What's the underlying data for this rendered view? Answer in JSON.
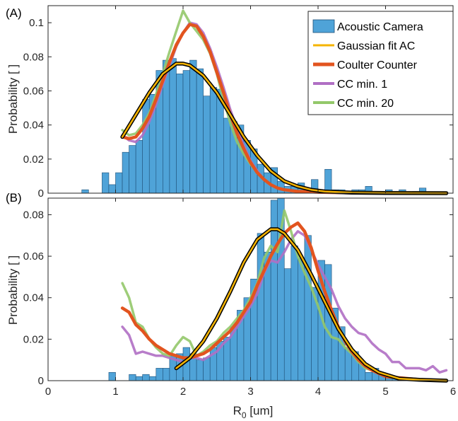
{
  "colors": {
    "bar_fill": "#4fa3d8",
    "bar_edge": "#1f4f77",
    "gauss": "#f5b400",
    "gauss_outline": "#000000",
    "coulter": "#e2541f",
    "cc_min1": "#b06fc4",
    "cc_min20": "#93c86a",
    "axis": "#262626"
  },
  "legend": {
    "entries": [
      {
        "label": "Acoustic Camera",
        "kind": "bar"
      },
      {
        "label": "Gaussian fit AC",
        "kind": "gauss"
      },
      {
        "label": "Coulter Counter",
        "kind": "coulter"
      },
      {
        "label": "CC min. 1",
        "kind": "cc_min1"
      },
      {
        "label": "CC min. 20",
        "kind": "cc_min20"
      }
    ]
  },
  "chart_data": [
    {
      "panel": "(A)",
      "type": "bar",
      "xlabel": "",
      "ylabel": "Probability [ ]",
      "xlim": [
        0,
        6
      ],
      "ylim": [
        0,
        0.11
      ],
      "yticks": [
        0,
        0.02,
        0.04,
        0.06,
        0.08,
        0.1
      ],
      "ytick_labels": [
        "0",
        "0.02",
        "0.04",
        "0.06",
        "0.08",
        "0.1"
      ],
      "legend_position": "top-right",
      "histogram": {
        "name": "Acoustic Camera",
        "bin_width": 0.1,
        "bins": [
          [
            0.5,
            0.002
          ],
          [
            0.8,
            0.012
          ],
          [
            0.9,
            0.005
          ],
          [
            1.0,
            0.012
          ],
          [
            1.1,
            0.024
          ],
          [
            1.2,
            0.028
          ],
          [
            1.3,
            0.031
          ],
          [
            1.4,
            0.055
          ],
          [
            1.5,
            0.058
          ],
          [
            1.6,
            0.072
          ],
          [
            1.7,
            0.078
          ],
          [
            1.8,
            0.079
          ],
          [
            1.9,
            0.07
          ],
          [
            2.0,
            0.072
          ],
          [
            2.1,
            0.078
          ],
          [
            2.2,
            0.073
          ],
          [
            2.3,
            0.057
          ],
          [
            2.4,
            0.062
          ],
          [
            2.5,
            0.061
          ],
          [
            2.6,
            0.044
          ],
          [
            2.7,
            0.042
          ],
          [
            2.8,
            0.04
          ],
          [
            2.9,
            0.031
          ],
          [
            3.0,
            0.026
          ],
          [
            3.1,
            0.017
          ],
          [
            3.2,
            0.012
          ],
          [
            3.3,
            0.015
          ],
          [
            3.4,
            0.007
          ],
          [
            3.5,
            0.004
          ],
          [
            3.6,
            0.004
          ],
          [
            3.7,
            0.006
          ],
          [
            3.8,
            0.003
          ],
          [
            3.9,
            0.008
          ],
          [
            4.0,
            0.002
          ],
          [
            4.1,
            0.014
          ],
          [
            4.2,
            0.002
          ],
          [
            4.3,
            0.002
          ],
          [
            4.4,
            0.001
          ],
          [
            4.5,
            0.002
          ],
          [
            4.6,
            0.002
          ],
          [
            4.7,
            0.004
          ],
          [
            4.8,
            0.001
          ],
          [
            5.0,
            0.002
          ],
          [
            5.1,
            0.001
          ],
          [
            5.2,
            0.002
          ],
          [
            5.4,
            0.001
          ],
          [
            5.5,
            0.003
          ]
        ]
      },
      "series": [
        {
          "name": "Gaussian fit AC",
          "kind": "gauss",
          "x": [
            1.1,
            1.3,
            1.5,
            1.7,
            1.9,
            2.0,
            2.1,
            2.3,
            2.5,
            2.7,
            2.9,
            3.1,
            3.3,
            3.5,
            3.7,
            3.9,
            4.1,
            4.5,
            5.0,
            5.9
          ],
          "y": [
            0.033,
            0.046,
            0.059,
            0.07,
            0.076,
            0.076,
            0.075,
            0.069,
            0.059,
            0.046,
            0.033,
            0.022,
            0.013,
            0.007,
            0.004,
            0.002,
            0.001,
            0.0003,
            0.0001,
            0
          ]
        },
        {
          "name": "Coulter Counter",
          "kind": "coulter",
          "x": [
            1.1,
            1.2,
            1.3,
            1.4,
            1.5,
            1.6,
            1.7,
            1.8,
            1.9,
            2.0,
            2.1,
            2.2,
            2.3,
            2.4,
            2.5,
            2.6,
            2.7,
            2.8,
            2.9,
            3.0,
            3.1,
            3.2,
            3.3,
            3.4,
            3.5,
            3.6,
            3.7,
            3.8,
            3.9,
            4.0,
            4.2,
            4.5,
            5.0,
            5.9
          ],
          "y": [
            0.033,
            0.032,
            0.033,
            0.038,
            0.045,
            0.055,
            0.066,
            0.077,
            0.087,
            0.094,
            0.099,
            0.098,
            0.092,
            0.083,
            0.071,
            0.059,
            0.046,
            0.035,
            0.026,
            0.018,
            0.012,
            0.008,
            0.005,
            0.003,
            0.002,
            0.0015,
            0.001,
            0.001,
            0.0008,
            0.0006,
            0.0004,
            0.0002,
            0.0001,
            0
          ]
        },
        {
          "name": "CC min. 1",
          "kind": "cc_min1",
          "x": [
            1.1,
            1.2,
            1.3,
            1.4,
            1.5,
            1.6,
            1.7,
            1.8,
            1.9,
            2.0,
            2.1,
            2.2,
            2.3,
            2.4,
            2.5,
            2.6,
            2.7,
            2.8,
            2.9,
            3.0,
            3.1,
            3.2,
            3.3,
            3.4,
            3.5,
            3.7,
            4.0,
            4.5,
            5.0,
            5.9
          ],
          "y": [
            0.034,
            0.031,
            0.03,
            0.034,
            0.042,
            0.052,
            0.064,
            0.075,
            0.086,
            0.094,
            0.1,
            0.099,
            0.094,
            0.085,
            0.074,
            0.062,
            0.049,
            0.038,
            0.028,
            0.019,
            0.013,
            0.008,
            0.005,
            0.003,
            0.002,
            0.001,
            0.0008,
            0.0005,
            0.0002,
            0
          ]
        },
        {
          "name": "CC min. 20",
          "kind": "cc_min20",
          "x": [
            1.1,
            1.2,
            1.3,
            1.4,
            1.5,
            1.6,
            1.7,
            1.8,
            1.9,
            2.0,
            2.1,
            2.2,
            2.3,
            2.4,
            2.5,
            2.6,
            2.7,
            2.8,
            2.9,
            3.0,
            3.1,
            3.2,
            3.3,
            3.4,
            3.5,
            3.7,
            4.0,
            4.5,
            5.0,
            5.9
          ],
          "y": [
            0.037,
            0.034,
            0.035,
            0.04,
            0.047,
            0.058,
            0.07,
            0.083,
            0.095,
            0.107,
            0.1,
            0.095,
            0.09,
            0.082,
            0.07,
            0.055,
            0.041,
            0.03,
            0.023,
            0.017,
            0.012,
            0.008,
            0.005,
            0.003,
            0.002,
            0.001,
            0.0008,
            0.0004,
            0.0002,
            0
          ]
        }
      ]
    },
    {
      "panel": "(B)",
      "type": "bar",
      "xlabel": "R0 [um]",
      "xlabel_main": "R",
      "xlabel_sub": "0",
      "xlabel_rest": " [um]",
      "ylabel": "Probability [ ]",
      "xlim": [
        0,
        6
      ],
      "ylim": [
        0,
        0.088
      ],
      "xticks": [
        0,
        1,
        2,
        3,
        4,
        5,
        6
      ],
      "xtick_labels": [
        "0",
        "1",
        "2",
        "3",
        "4",
        "5",
        "6"
      ],
      "yticks": [
        0,
        0.02,
        0.04,
        0.06,
        0.08
      ],
      "ytick_labels": [
        "0",
        "0.02",
        "0.04",
        "0.06",
        "0.08"
      ],
      "histogram": {
        "name": "Acoustic Camera",
        "bin_width": 0.1,
        "bins": [
          [
            0.9,
            0.004
          ],
          [
            1.2,
            0.003
          ],
          [
            1.3,
            0.002
          ],
          [
            1.4,
            0.003
          ],
          [
            1.5,
            0.002
          ],
          [
            1.6,
            0.006
          ],
          [
            1.7,
            0.006
          ],
          [
            1.8,
            0.012
          ],
          [
            1.9,
            0.013
          ],
          [
            2.0,
            0.016
          ],
          [
            2.1,
            0.013
          ],
          [
            2.2,
            0.01
          ],
          [
            2.3,
            0.011
          ],
          [
            2.4,
            0.016
          ],
          [
            2.5,
            0.019
          ],
          [
            2.6,
            0.021
          ],
          [
            2.7,
            0.026
          ],
          [
            2.8,
            0.034
          ],
          [
            2.9,
            0.04
          ],
          [
            3.0,
            0.049
          ],
          [
            3.1,
            0.071
          ],
          [
            3.2,
            0.062
          ],
          [
            3.3,
            0.087
          ],
          [
            3.4,
            0.088
          ],
          [
            3.5,
            0.054
          ],
          [
            3.6,
            0.065
          ],
          [
            3.7,
            0.059
          ],
          [
            3.8,
            0.07
          ],
          [
            3.9,
            0.045
          ],
          [
            4.0,
            0.058
          ],
          [
            4.1,
            0.056
          ],
          [
            4.2,
            0.035
          ],
          [
            4.3,
            0.026
          ],
          [
            4.4,
            0.016
          ],
          [
            4.5,
            0.014
          ],
          [
            4.6,
            0.009
          ],
          [
            4.7,
            0.004
          ],
          [
            4.8,
            0.006
          ],
          [
            4.9,
            0.003
          ],
          [
            5.0,
            0.001
          ],
          [
            5.1,
            0.001
          ]
        ]
      },
      "series": [
        {
          "name": "Gaussian fit AC",
          "kind": "gauss",
          "x": [
            1.9,
            2.1,
            2.3,
            2.5,
            2.7,
            2.9,
            3.1,
            3.3,
            3.4,
            3.5,
            3.7,
            3.9,
            4.1,
            4.3,
            4.5,
            4.7,
            4.9,
            5.2,
            5.5,
            5.9
          ],
          "y": [
            0.006,
            0.011,
            0.019,
            0.03,
            0.043,
            0.057,
            0.068,
            0.073,
            0.073,
            0.071,
            0.063,
            0.051,
            0.038,
            0.025,
            0.015,
            0.008,
            0.004,
            0.001,
            0.0004,
            0
          ]
        },
        {
          "name": "Coulter Counter",
          "kind": "coulter",
          "x": [
            1.1,
            1.2,
            1.3,
            1.4,
            1.5,
            1.6,
            1.7,
            1.8,
            1.9,
            2.0,
            2.1,
            2.2,
            2.3,
            2.4,
            2.5,
            2.6,
            2.7,
            2.8,
            2.9,
            3.0,
            3.1,
            3.2,
            3.3,
            3.4,
            3.5,
            3.6,
            3.7,
            3.8,
            3.9,
            4.0,
            4.1,
            4.2,
            4.3,
            4.4,
            4.5,
            4.6,
            4.7,
            4.8,
            5.0,
            5.5,
            5.9
          ],
          "y": [
            0.035,
            0.033,
            0.027,
            0.024,
            0.02,
            0.017,
            0.015,
            0.013,
            0.012,
            0.011,
            0.011,
            0.012,
            0.013,
            0.015,
            0.018,
            0.021,
            0.024,
            0.028,
            0.033,
            0.038,
            0.046,
            0.053,
            0.06,
            0.066,
            0.071,
            0.074,
            0.076,
            0.072,
            0.064,
            0.053,
            0.043,
            0.034,
            0.026,
            0.019,
            0.014,
            0.01,
            0.007,
            0.005,
            0.002,
            0.0005,
            0
          ]
        },
        {
          "name": "CC min. 1",
          "kind": "cc_min1",
          "x": [
            1.1,
            1.2,
            1.3,
            1.4,
            1.5,
            1.6,
            1.7,
            1.8,
            1.9,
            2.0,
            2.1,
            2.2,
            2.3,
            2.4,
            2.5,
            2.6,
            2.7,
            2.8,
            2.9,
            3.0,
            3.1,
            3.2,
            3.3,
            3.4,
            3.5,
            3.6,
            3.7,
            3.8,
            3.9,
            4.0,
            4.1,
            4.2,
            4.3,
            4.4,
            4.5,
            4.6,
            4.7,
            4.8,
            4.9,
            5.0,
            5.1,
            5.2,
            5.3,
            5.4,
            5.5,
            5.6,
            5.7,
            5.8,
            5.9
          ],
          "y": [
            0.026,
            0.022,
            0.013,
            0.014,
            0.013,
            0.012,
            0.012,
            0.011,
            0.01,
            0.009,
            0.011,
            0.011,
            0.01,
            0.012,
            0.014,
            0.018,
            0.021,
            0.026,
            0.031,
            0.036,
            0.042,
            0.052,
            0.058,
            0.057,
            0.062,
            0.068,
            0.072,
            0.07,
            0.063,
            0.056,
            0.05,
            0.044,
            0.036,
            0.03,
            0.026,
            0.023,
            0.022,
            0.018,
            0.015,
            0.013,
            0.009,
            0.009,
            0.006,
            0.006,
            0.006,
            0.005,
            0.007,
            0.004,
            0.005
          ]
        },
        {
          "name": "CC min. 20",
          "kind": "cc_min20",
          "x": [
            1.1,
            1.2,
            1.3,
            1.4,
            1.5,
            1.6,
            1.7,
            1.8,
            1.9,
            2.0,
            2.1,
            2.2,
            2.3,
            2.4,
            2.5,
            2.6,
            2.7,
            2.8,
            2.9,
            3.0,
            3.1,
            3.2,
            3.3,
            3.4,
            3.5,
            3.6,
            3.7,
            3.8,
            3.9,
            4.0,
            4.1,
            4.2,
            4.3,
            4.4,
            4.5,
            4.6,
            4.7,
            4.8,
            4.9,
            5.0,
            5.2,
            5.5,
            5.9
          ],
          "y": [
            0.047,
            0.04,
            0.028,
            0.026,
            0.02,
            0.016,
            0.013,
            0.012,
            0.017,
            0.021,
            0.019,
            0.012,
            0.014,
            0.017,
            0.019,
            0.023,
            0.026,
            0.03,
            0.034,
            0.04,
            0.047,
            0.059,
            0.065,
            0.062,
            0.082,
            0.072,
            0.06,
            0.052,
            0.045,
            0.036,
            0.026,
            0.021,
            0.02,
            0.016,
            0.013,
            0.009,
            0.006,
            0.005,
            0.004,
            0.002,
            0.001,
            0.0005,
            0
          ]
        }
      ]
    }
  ]
}
